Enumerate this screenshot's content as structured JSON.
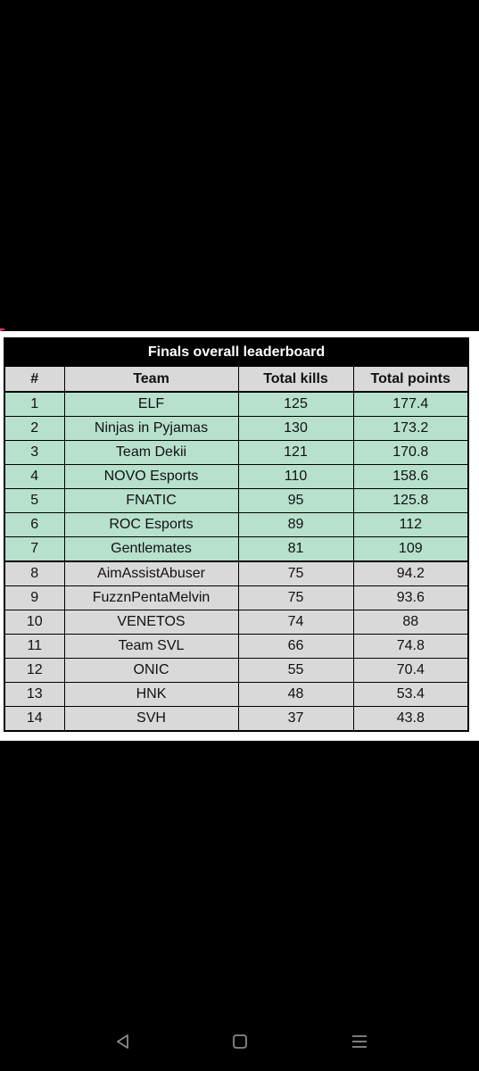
{
  "leaderboard": {
    "title": "Finals overall leaderboard",
    "columns": [
      "#",
      "Team",
      "Total kills",
      "Total points"
    ],
    "rows": [
      {
        "rank": "1",
        "team": "ELF",
        "kills": "125",
        "points": "177.4"
      },
      {
        "rank": "2",
        "team": "Ninjas in Pyjamas",
        "kills": "130",
        "points": "173.2"
      },
      {
        "rank": "3",
        "team": "Team Dekii",
        "kills": "121",
        "points": "170.8"
      },
      {
        "rank": "4",
        "team": "NOVO Esports",
        "kills": "110",
        "points": "158.6"
      },
      {
        "rank": "5",
        "team": "FNATIC",
        "kills": "95",
        "points": "125.8"
      },
      {
        "rank": "6",
        "team": "ROC Esports",
        "kills": "89",
        "points": "112"
      },
      {
        "rank": "7",
        "team": "Gentlemates",
        "kills": "81",
        "points": "109"
      },
      {
        "rank": "8",
        "team": "AimAssistAbuser",
        "kills": "75",
        "points": "94.2"
      },
      {
        "rank": "9",
        "team": "FuzznPentaMelvin",
        "kills": "75",
        "points": "93.6"
      },
      {
        "rank": "10",
        "team": "VENETOS",
        "kills": "74",
        "points": "88"
      },
      {
        "rank": "11",
        "team": "Team SVL",
        "kills": "66",
        "points": "74.8"
      },
      {
        "rank": "12",
        "team": "ONIC",
        "kills": "55",
        "points": "70.4"
      },
      {
        "rank": "13",
        "team": "HNK",
        "kills": "48",
        "points": "53.4"
      },
      {
        "rank": "14",
        "team": "SVH",
        "kills": "37",
        "points": "43.8"
      }
    ],
    "colors": {
      "highlight_rows": "#b7e1cd",
      "other_rows": "#d9d9d9",
      "title_bar": "#000000"
    }
  },
  "system_nav": {
    "back_icon": "back-triangle-icon",
    "home_icon": "home-square-icon",
    "menu_icon": "recent-apps-icon"
  }
}
